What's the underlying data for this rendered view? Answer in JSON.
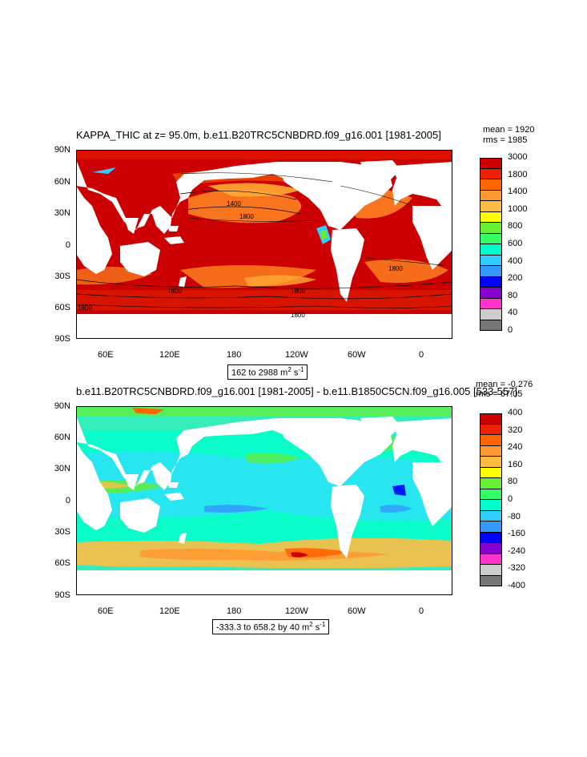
{
  "panels": [
    {
      "title": "KAPPA_THIC at z=  95.0m, b.e11.B20TRC5CNBDRD.f09_g16.001 [1981-2005]",
      "mean": "mean = 1920",
      "rms": "rms = 1985",
      "range_text": "162 to 2988 m",
      "range_sup1": "2",
      "range_mid": " s",
      "range_sup2": "-1",
      "lat_ticks": [
        "90N",
        "60N",
        "30N",
        "0",
        "30S",
        "60S",
        "90S"
      ],
      "lon_ticks": [
        "60E",
        "120E",
        "180",
        "120W",
        "60W",
        "0"
      ],
      "contour_labels": [
        "1400",
        "1800",
        "1800",
        "1800",
        "1800",
        "1800",
        "1800"
      ],
      "colorbar": {
        "labels": [
          "3000",
          "1800",
          "1400",
          "1000",
          "800",
          "600",
          "400",
          "200",
          "80",
          "40",
          "0"
        ],
        "colors": [
          "#cc0000",
          "#ee2200",
          "#ff6600",
          "#ff9933",
          "#ffbb44",
          "#ffff00",
          "#66ee33",
          "#33ff66",
          "#00ffcc",
          "#33ccff",
          "#3399ff",
          "#0000ff",
          "#8800cc",
          "#ff33cc",
          "#cccccc",
          "#777777"
        ]
      }
    },
    {
      "title": "b.e11.B20TRC5CNBDRD.f09_g16.001 [1981-2005] - b.e11.B1850C5CN.f09_g16.005 [533-557]",
      "mean": "mean = -0.276",
      "rms": "rms = 67.05",
      "range_text": "-333.3 to 658.2 by 40 m",
      "range_sup1": "2",
      "range_mid": " s",
      "range_sup2": "-1",
      "lat_ticks": [
        "90N",
        "60N",
        "30N",
        "0",
        "30S",
        "60S",
        "90S"
      ],
      "lon_ticks": [
        "60E",
        "120E",
        "180",
        "120W",
        "60W",
        "0"
      ],
      "colorbar": {
        "labels": [
          "400",
          "320",
          "240",
          "160",
          "80",
          "0",
          "-80",
          "-160",
          "-240",
          "-320",
          "-400"
        ],
        "colors": [
          "#cc0000",
          "#ee2200",
          "#ff6600",
          "#ff9933",
          "#ffbb44",
          "#ffff00",
          "#66ee33",
          "#33ff66",
          "#00ffcc",
          "#33ccff",
          "#3399ff",
          "#0000ff",
          "#8800cc",
          "#ff33cc",
          "#cccccc",
          "#777777"
        ]
      }
    }
  ]
}
